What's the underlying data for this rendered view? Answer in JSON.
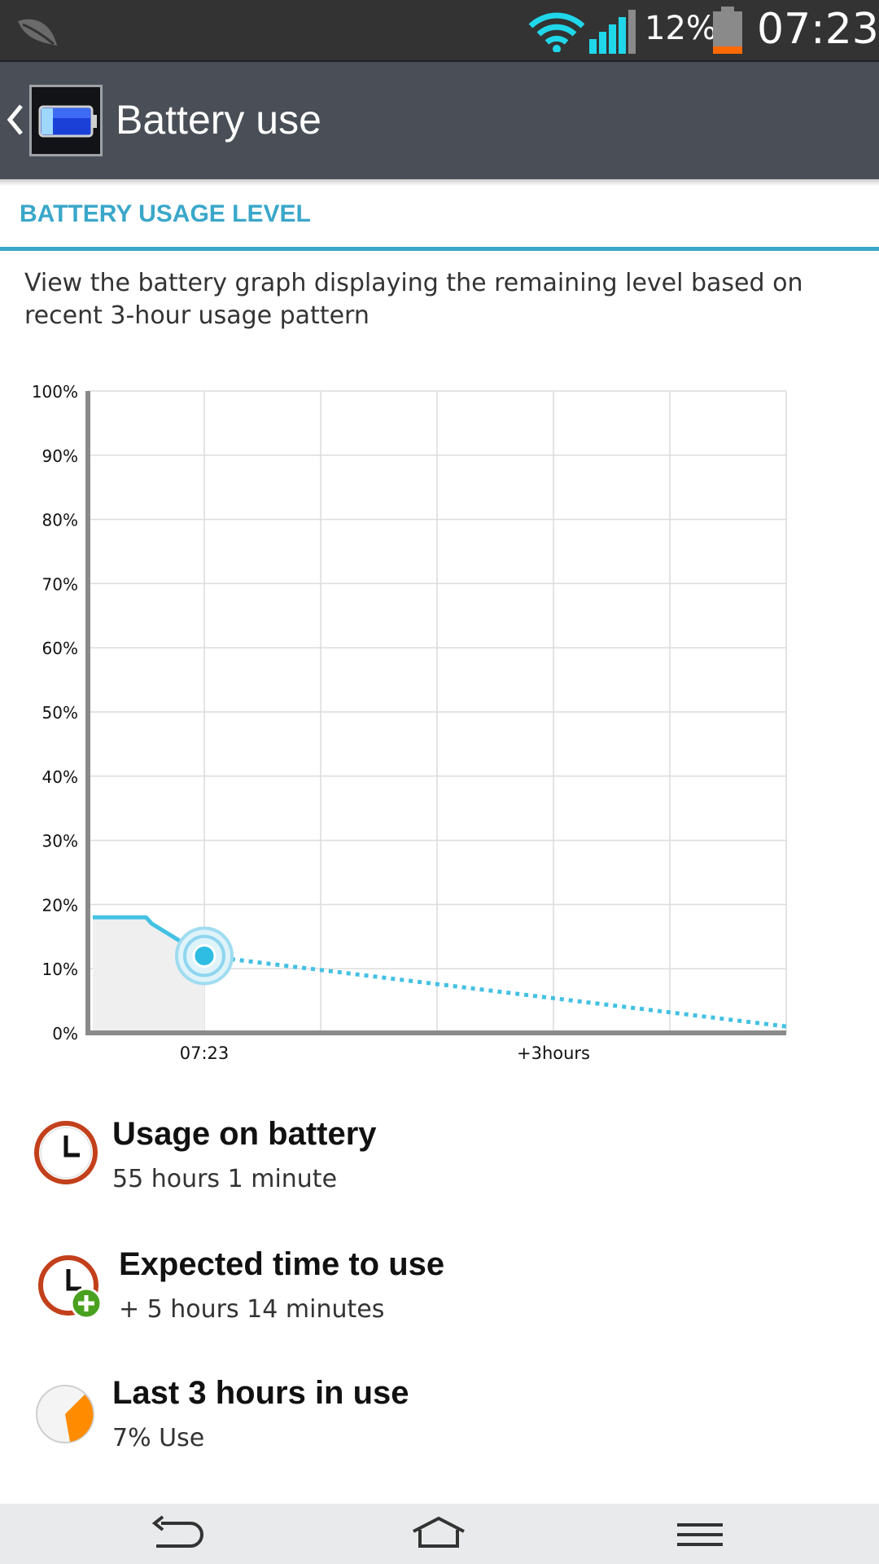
{
  "status_bar": {
    "battery_percent": "12%",
    "time": "07:23",
    "icons": [
      "leaf-icon",
      "wifi-icon",
      "signal-icon",
      "battery-icon"
    ]
  },
  "action_bar": {
    "title": "Battery use"
  },
  "section": {
    "header": "BATTERY USAGE LEVEL",
    "description": "View the battery graph displaying the remaining level based on recent 3-hour usage pattern"
  },
  "chart_data": {
    "type": "line",
    "y_ticks": [
      "100%",
      "90%",
      "80%",
      "70%",
      "60%",
      "50%",
      "40%",
      "30%",
      "20%",
      "10%",
      "0%"
    ],
    "x_labels": [
      "07:23",
      "+3hours"
    ],
    "ylim": [
      0,
      100
    ],
    "series": [
      {
        "style": "solid",
        "points": [
          [
            -1.0,
            18
          ],
          [
            -0.5,
            18
          ],
          [
            -0.45,
            17
          ],
          [
            0,
            12
          ]
        ]
      },
      {
        "style": "dotted",
        "points": [
          [
            0,
            12
          ],
          [
            5,
            1
          ]
        ]
      }
    ],
    "current_marker": {
      "x": 0,
      "y": 12
    },
    "colors": {
      "line": "#43c1e3",
      "axis": "#8a8a8a",
      "grid": "#dcdcdc",
      "fill": "#efefef"
    }
  },
  "info": {
    "usage": {
      "title": "Usage on battery",
      "value": "55 hours 1 minute",
      "icon": "clock-icon"
    },
    "expected": {
      "title": "Expected time to use",
      "value": "+ 5 hours 14 minutes",
      "icon": "clock-plus-icon"
    },
    "last3": {
      "title": "Last 3 hours in use",
      "value": "7% Use",
      "icon": "pie-icon"
    }
  },
  "nav": {
    "buttons": [
      "back-nav-icon",
      "home-nav-icon",
      "menu-nav-icon"
    ]
  }
}
